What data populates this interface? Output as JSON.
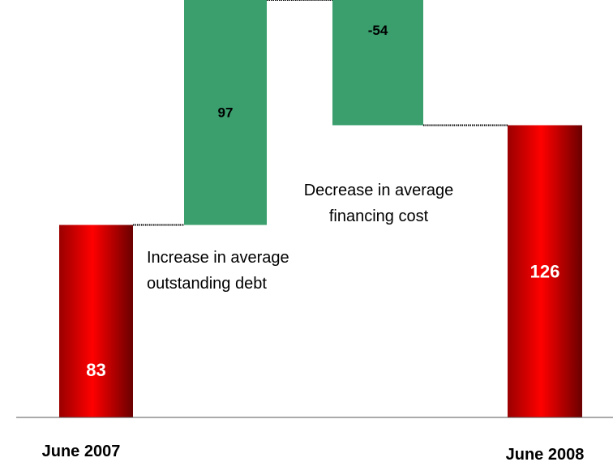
{
  "chart_data": {
    "type": "bar",
    "subtype": "waterfall",
    "categories": [
      "June 2007",
      "",
      "",
      "June 2008"
    ],
    "steps": [
      {
        "category": "June 2007",
        "kind": "total",
        "value": 83,
        "label": "83"
      },
      {
        "category": "",
        "kind": "delta",
        "value": 97,
        "label": "97"
      },
      {
        "category": "",
        "kind": "delta",
        "value": -54,
        "label": "-54"
      },
      {
        "category": "June 2008",
        "kind": "total",
        "value": 126,
        "label": "126"
      }
    ],
    "annotations": [
      {
        "text_lines": [
          "Increase in average",
          "outstanding debt"
        ],
        "anchor": "step-2"
      },
      {
        "text_lines": [
          "Decrease in average",
          "financing cost"
        ],
        "anchor": "step-3"
      }
    ],
    "ylim": [
      0,
      180
    ],
    "grid": false,
    "colors": {
      "total": "#e00000",
      "total_dark": "#7a0000",
      "delta": "#3a9e6d",
      "total_label": "#ffffff",
      "delta_label": "#000000"
    }
  }
}
